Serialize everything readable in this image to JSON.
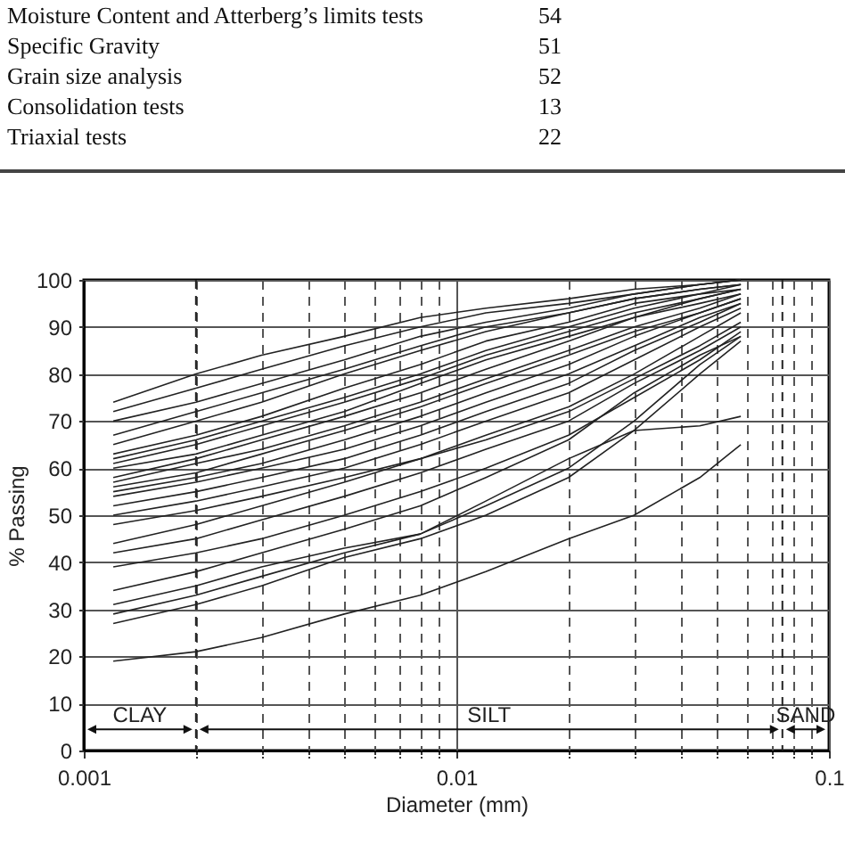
{
  "chart_data": {
    "type": "line",
    "xlabel": "Diameter (mm)",
    "ylabel": "% Passing",
    "annotations": [
      "Moisture Content and Atterberg’s limits tests",
      "54",
      "Specific Gravity",
      "51",
      "Grain size analysis",
      "52",
      "Consolidation tests",
      "13",
      "Triaxial tests",
      "22",
      "CLAY",
      "SILT",
      "SAND"
    ],
    "ref_lines": [
      {
        "axis": "x",
        "value": 0.002,
        "line_style": "dashed"
      },
      {
        "axis": "x",
        "value": 0.075,
        "line_style": "dashed"
      }
    ],
    "log": "x",
    "grid": true,
    "marker": "none",
    "line_style": "solid",
    "xlim": [
      0.001,
      0.1
    ],
    "ylim": [
      0,
      100
    ],
    "xticks": [
      0.001,
      {
        "value": 0.002,
        "label": null
      },
      {
        "value": 0.003,
        "label": null
      },
      {
        "value": 0.004,
        "label": null
      },
      {
        "value": 0.005,
        "label": null
      },
      {
        "value": 0.006,
        "label": null
      },
      {
        "value": 0.007,
        "label": null
      },
      {
        "value": 0.008,
        "label": null
      },
      {
        "value": 0.009,
        "label": null
      },
      0.01,
      {
        "value": 0.02,
        "label": null
      },
      {
        "value": 0.03,
        "label": null
      },
      {
        "value": 0.04,
        "label": null
      },
      {
        "value": 0.05,
        "label": null
      },
      {
        "value": 0.06,
        "label": null
      },
      {
        "value": 0.07,
        "label": null
      },
      {
        "value": 0.08,
        "label": null
      },
      {
        "value": 0.09,
        "label": null
      },
      0.1
    ],
    "yticks": [
      0,
      10,
      20,
      30,
      40,
      50,
      60,
      70,
      80,
      90,
      100
    ],
    "x": [
      0.0012,
      0.002,
      0.003,
      0.005,
      0.008,
      0.012,
      0.02,
      0.03,
      0.045,
      0.058
    ],
    "series": [
      {
        "color": "#222222",
        "values": [
          74,
          80,
          84,
          88,
          92,
          94,
          96,
          98,
          99,
          100
        ]
      },
      {
        "color": "#222222",
        "values": [
          72,
          77,
          81,
          86,
          90,
          93,
          95,
          97,
          99,
          100
        ]
      },
      {
        "color": "#222222",
        "values": [
          70,
          74,
          78,
          83,
          88,
          91,
          94,
          97,
          99,
          100
        ]
      },
      {
        "color": "#222222",
        "values": [
          67,
          72,
          76,
          81,
          86,
          90,
          93,
          96,
          98,
          99
        ]
      },
      {
        "color": "#222222",
        "values": [
          65,
          70,
          74,
          80,
          85,
          89,
          93,
          96,
          98,
          99
        ]
      },
      {
        "color": "#222222",
        "values": [
          63,
          67,
          71,
          77,
          82,
          87,
          91,
          95,
          97,
          99
        ]
      },
      {
        "color": "#222222",
        "values": [
          62,
          66,
          70,
          75,
          80,
          85,
          90,
          94,
          97,
          98
        ]
      },
      {
        "color": "#222222",
        "values": [
          61,
          65,
          69,
          74,
          79,
          84,
          89,
          93,
          96,
          98
        ]
      },
      {
        "color": "#222222",
        "values": [
          60,
          63,
          67,
          72,
          78,
          83,
          88,
          92,
          96,
          98
        ]
      },
      {
        "color": "#222222",
        "values": [
          58,
          62,
          66,
          71,
          76,
          81,
          87,
          92,
          95,
          97
        ]
      },
      {
        "color": "#222222",
        "values": [
          57,
          61,
          64,
          69,
          74,
          79,
          85,
          90,
          94,
          97
        ]
      },
      {
        "color": "#222222",
        "values": [
          56,
          59,
          63,
          68,
          73,
          78,
          84,
          89,
          93,
          96
        ]
      },
      {
        "color": "#222222",
        "values": [
          55,
          58,
          61,
          66,
          71,
          76,
          82,
          88,
          93,
          96
        ]
      },
      {
        "color": "#222222",
        "values": [
          54,
          57,
          60,
          64,
          69,
          74,
          80,
          86,
          92,
          95
        ]
      },
      {
        "color": "#222222",
        "values": [
          52,
          55,
          58,
          62,
          67,
          72,
          78,
          85,
          91,
          95
        ]
      },
      {
        "color": "#222222",
        "values": [
          50,
          53,
          56,
          60,
          65,
          70,
          76,
          83,
          90,
          94
        ]
      },
      {
        "color": "#222222",
        "values": [
          48,
          51,
          54,
          58,
          62,
          67,
          73,
          80,
          88,
          93
        ]
      },
      {
        "color": "#222222",
        "values": [
          44,
          48,
          52,
          57,
          62,
          66,
          72,
          79,
          86,
          91
        ]
      },
      {
        "color": "#222222",
        "values": [
          42,
          45,
          49,
          54,
          59,
          64,
          70,
          78,
          85,
          90
        ]
      },
      {
        "color": "#222222",
        "values": [
          39,
          42,
          45,
          50,
          55,
          60,
          67,
          75,
          83,
          89
        ]
      },
      {
        "color": "#222222",
        "values": [
          34,
          38,
          42,
          47,
          52,
          58,
          66,
          76,
          84,
          88
        ]
      },
      {
        "color": "#222222",
        "values": [
          31,
          35,
          39,
          43,
          46,
          53,
          62,
          68,
          69,
          71
        ]
      },
      {
        "color": "#222222",
        "values": [
          29,
          33,
          37,
          42,
          46,
          52,
          60,
          70,
          82,
          88
        ]
      },
      {
        "color": "#222222",
        "values": [
          27,
          31,
          35,
          41,
          45,
          50,
          58,
          68,
          80,
          87
        ]
      },
      {
        "color": "#222222",
        "values": [
          19,
          21,
          24,
          29,
          33,
          38,
          45,
          50,
          58,
          65
        ]
      }
    ]
  }
}
